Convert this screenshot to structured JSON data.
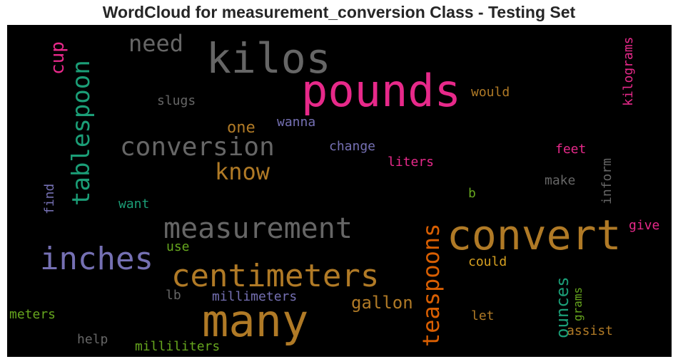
{
  "title": "WordCloud for measurement_conversion Class - Testing Set",
  "palette": {
    "background": "#000000",
    "gray": "#666666",
    "gray_light": "#7a7a7a",
    "pink": "#e7298a",
    "orange": "#b07a26",
    "gold": "#d6a020",
    "dark_orange": "#d95f02",
    "teal": "#1b9e77",
    "purple": "#7570b3",
    "green": "#66a61e"
  },
  "words": {
    "kilos": "kilos",
    "pounds": "pounds",
    "convert": "convert",
    "many": "many",
    "centimeters": "centimeters",
    "measurement": "measurement",
    "inches": "inches",
    "conversion": "conversion",
    "tablespoon": "tablespoon",
    "know": "know",
    "need": "need",
    "teaspoons": "teaspoons",
    "cup": "cup",
    "kilograms": "kilograms",
    "one": "one",
    "would": "would",
    "slugs": "slugs",
    "wanna": "wanna",
    "change": "change",
    "feet": "feet",
    "liters": "liters",
    "make": "make",
    "inform": "inform",
    "find": "find",
    "want": "want",
    "b": "b",
    "give": "give",
    "use": "use",
    "could": "could",
    "ounces": "ounces",
    "gallon": "gallon",
    "lb": "lb",
    "millimeters": "millimeters",
    "grams": "grams",
    "meters": "meters",
    "let": "let",
    "assist": "assist",
    "help": "help",
    "milliliters": "milliliters"
  }
}
